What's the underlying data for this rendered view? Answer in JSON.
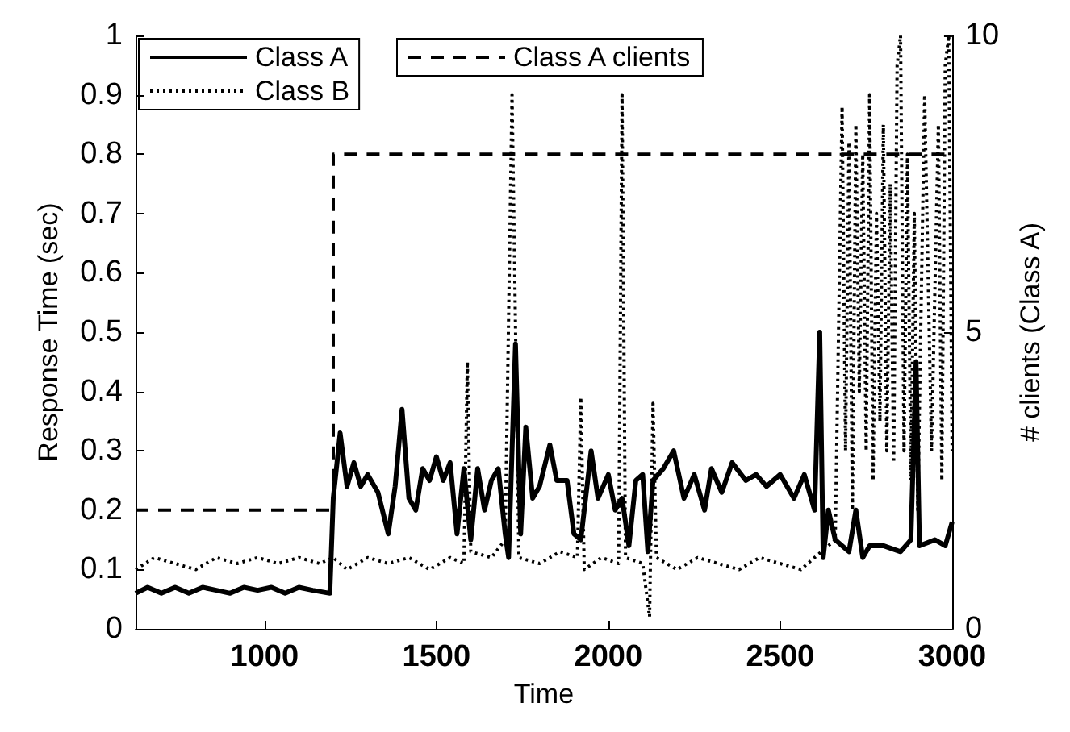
{
  "chart_data": {
    "type": "line",
    "xlabel": "Time",
    "ylabel": "Response Time (sec)",
    "y2label": "# clients (Class A)",
    "xlim": [
      625,
      3000
    ],
    "xticks": [
      1000,
      1500,
      2000,
      2500,
      3000
    ],
    "ylim": [
      0,
      1
    ],
    "yticks": [
      0,
      0.1,
      0.2,
      0.3,
      0.4,
      0.5,
      0.6,
      0.7,
      0.8,
      0.9,
      1
    ],
    "y2lim": [
      0,
      10
    ],
    "y2ticks": [
      0,
      5,
      10
    ],
    "legend": "top left",
    "marker": "none",
    "grid": false,
    "series": [
      {
        "name": "Class A",
        "color": "#000000",
        "line_style": "solid",
        "x": [
          625,
          660,
          700,
          740,
          780,
          820,
          860,
          900,
          940,
          980,
          1020,
          1060,
          1100,
          1140,
          1190,
          1200,
          1220,
          1240,
          1260,
          1280,
          1300,
          1330,
          1360,
          1380,
          1400,
          1420,
          1440,
          1460,
          1480,
          1500,
          1520,
          1540,
          1560,
          1580,
          1600,
          1620,
          1640,
          1660,
          1680,
          1700,
          1710,
          1730,
          1745,
          1760,
          1780,
          1800,
          1830,
          1850,
          1880,
          1900,
          1920,
          1950,
          1970,
          2000,
          2020,
          2040,
          2060,
          2080,
          2100,
          2115,
          2130,
          2160,
          2190,
          2220,
          2250,
          2280,
          2300,
          2330,
          2360,
          2400,
          2430,
          2460,
          2500,
          2540,
          2570,
          2600,
          2615,
          2625,
          2640,
          2660,
          2680,
          2700,
          2720,
          2740,
          2760,
          2800,
          2850,
          2880,
          2895,
          2905,
          2950,
          2980,
          3000
        ],
        "values": [
          0.06,
          0.07,
          0.06,
          0.07,
          0.06,
          0.07,
          0.065,
          0.06,
          0.07,
          0.065,
          0.07,
          0.06,
          0.07,
          0.065,
          0.06,
          0.22,
          0.33,
          0.24,
          0.28,
          0.24,
          0.26,
          0.23,
          0.16,
          0.24,
          0.37,
          0.22,
          0.2,
          0.27,
          0.25,
          0.29,
          0.25,
          0.28,
          0.16,
          0.27,
          0.15,
          0.27,
          0.2,
          0.25,
          0.27,
          0.16,
          0.12,
          0.48,
          0.16,
          0.34,
          0.22,
          0.24,
          0.31,
          0.25,
          0.25,
          0.16,
          0.15,
          0.3,
          0.22,
          0.26,
          0.2,
          0.22,
          0.14,
          0.25,
          0.26,
          0.13,
          0.25,
          0.27,
          0.3,
          0.22,
          0.26,
          0.2,
          0.27,
          0.23,
          0.28,
          0.25,
          0.26,
          0.24,
          0.26,
          0.22,
          0.26,
          0.2,
          0.5,
          0.12,
          0.2,
          0.15,
          0.14,
          0.13,
          0.2,
          0.12,
          0.14,
          0.14,
          0.13,
          0.15,
          0.45,
          0.14,
          0.15,
          0.14,
          0.18
        ]
      },
      {
        "name": "Class B",
        "color": "#000000",
        "line_style": "dotted",
        "x": [
          625,
          680,
          740,
          800,
          860,
          920,
          980,
          1040,
          1100,
          1160,
          1200,
          1240,
          1300,
          1360,
          1420,
          1480,
          1540,
          1580,
          1590,
          1600,
          1660,
          1700,
          1720,
          1740,
          1800,
          1860,
          1910,
          1920,
          1930,
          1980,
          2030,
          2040,
          2050,
          2100,
          2120,
          2130,
          2140,
          2200,
          2260,
          2320,
          2380,
          2440,
          2500,
          2560,
          2620,
          2660,
          2680,
          2690,
          2700,
          2710,
          2720,
          2730,
          2740,
          2750,
          2760,
          2770,
          2780,
          2790,
          2800,
          2810,
          2820,
          2830,
          2840,
          2850,
          2860,
          2870,
          2880,
          2890,
          2900,
          2920,
          2940,
          2960,
          2970,
          2980,
          2990,
          3000
        ],
        "values": [
          0.1,
          0.12,
          0.11,
          0.1,
          0.12,
          0.11,
          0.12,
          0.11,
          0.12,
          0.11,
          0.12,
          0.1,
          0.12,
          0.11,
          0.12,
          0.1,
          0.12,
          0.11,
          0.45,
          0.13,
          0.12,
          0.15,
          0.9,
          0.12,
          0.11,
          0.13,
          0.12,
          0.39,
          0.1,
          0.12,
          0.11,
          0.9,
          0.12,
          0.11,
          0.02,
          0.38,
          0.12,
          0.1,
          0.12,
          0.11,
          0.1,
          0.12,
          0.11,
          0.1,
          0.13,
          0.15,
          0.88,
          0.3,
          0.82,
          0.2,
          0.85,
          0.4,
          0.8,
          0.3,
          0.9,
          0.25,
          0.7,
          0.35,
          0.85,
          0.3,
          0.75,
          0.28,
          0.95,
          1.0,
          0.3,
          0.8,
          0.25,
          0.7,
          0.2,
          0.9,
          0.3,
          0.85,
          0.25,
          0.95,
          1.0,
          0.3
        ]
      },
      {
        "name": "Class A clients",
        "color": "#000000",
        "line_style": "dashed",
        "type": "step",
        "axis": "y2",
        "x": [
          625,
          1200,
          3000
        ],
        "values": [
          2,
          8,
          8
        ]
      }
    ]
  }
}
